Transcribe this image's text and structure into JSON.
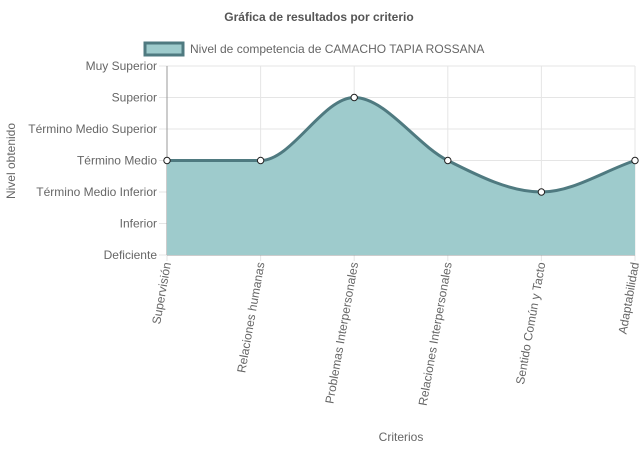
{
  "chart_data": {
    "type": "area",
    "title": "Gráfica de resultados por criterio",
    "xlabel": "Criterios",
    "ylabel": "Nivel obtenido",
    "categories": [
      "Supervisión",
      "Relaciones humanas",
      "Problemas Interpersonales",
      "Relaciones Interpersonales",
      "Sentido Común y Tacto",
      "Adaptabilidad"
    ],
    "y_levels": [
      "Deficiente",
      "Inferior",
      "Término Medio Inferior",
      "Término Medio",
      "Término Medio Superior",
      "Superior",
      "Muy Superior"
    ],
    "ylim": [
      0,
      6
    ],
    "series": [
      {
        "name": "Nivel de competencia de CAMACHO TAPIA ROSSANA",
        "values": [
          3,
          3,
          5,
          3,
          2,
          3
        ]
      }
    ],
    "legend_position": "top",
    "grid": true,
    "colors": {
      "fill": "#9ecbcc",
      "line": "#4f7a80",
      "grid": "#e5e5e5",
      "axis": "#999999",
      "text": "#666666"
    }
  }
}
